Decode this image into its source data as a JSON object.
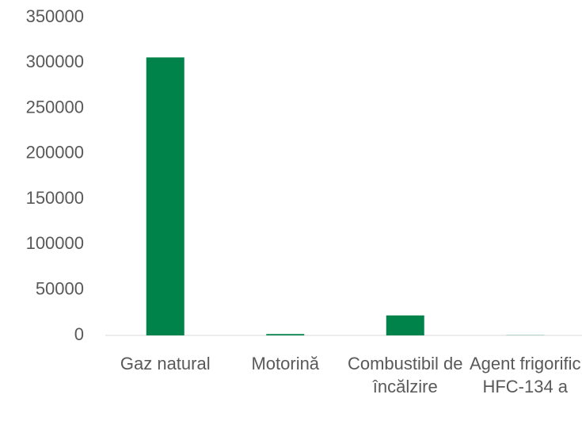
{
  "chart_data": {
    "type": "bar",
    "categories": [
      "Gaz natural",
      "Motorină",
      "Combustibil de încălzire",
      "Agent frigorific HFC-134 a"
    ],
    "values": [
      306000,
      1500,
      22000,
      200
    ],
    "color": "#00834a",
    "ylim": [
      0,
      350000
    ],
    "yticks": [
      0,
      50000,
      100000,
      150000,
      200000,
      250000,
      300000,
      350000
    ],
    "grid": false
  }
}
